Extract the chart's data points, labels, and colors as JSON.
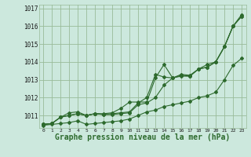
{
  "bg_color": "#cce8dd",
  "grid_color": "#99bb99",
  "line_color": "#2d6a2d",
  "xlabel": "Graphe pression niveau de la mer (hPa)",
  "xlabel_fontsize": 7.0,
  "xlim": [
    -0.5,
    23.5
  ],
  "ylim": [
    1010.3,
    1017.2
  ],
  "yticks": [
    1011,
    1012,
    1013,
    1014,
    1015,
    1016,
    1017
  ],
  "xticks": [
    0,
    1,
    2,
    3,
    4,
    5,
    6,
    7,
    8,
    9,
    10,
    11,
    12,
    13,
    14,
    15,
    16,
    17,
    18,
    19,
    20,
    21,
    22,
    23
  ],
  "series": [
    [
      1010.5,
      1010.55,
      1010.9,
      1011.0,
      1011.1,
      1011.0,
      1011.1,
      1011.05,
      1011.1,
      1011.15,
      1011.2,
      1011.7,
      1012.0,
      1013.3,
      1013.15,
      1013.1,
      1013.3,
      1013.25,
      1013.6,
      1013.7,
      1014.0,
      1014.85,
      1016.0,
      1016.55
    ],
    [
      1010.5,
      1010.55,
      1010.9,
      1011.0,
      1011.1,
      1011.0,
      1011.1,
      1011.05,
      1011.05,
      1011.1,
      1011.15,
      1011.6,
      1011.7,
      1012.0,
      1012.7,
      1013.1,
      1013.2,
      1013.2,
      1013.6,
      1013.7,
      1014.0,
      1014.85,
      1016.0,
      1016.55
    ],
    [
      1010.5,
      1010.55,
      1010.9,
      1011.15,
      1011.2,
      1011.0,
      1011.1,
      1011.1,
      1011.15,
      1011.4,
      1011.75,
      1011.75,
      1011.75,
      1013.1,
      1013.85,
      1013.1,
      1013.25,
      1013.2,
      1013.6,
      1013.85,
      1014.0,
      1014.85,
      1016.0,
      1016.65
    ],
    [
      1010.45,
      1010.5,
      1010.55,
      1010.6,
      1010.7,
      1010.5,
      1010.55,
      1010.6,
      1010.65,
      1010.7,
      1010.8,
      1011.0,
      1011.2,
      1011.3,
      1011.5,
      1011.6,
      1011.7,
      1011.8,
      1012.0,
      1012.1,
      1012.3,
      1013.0,
      1013.8,
      1014.2
    ]
  ],
  "marker": "D",
  "marker_size": 2.0,
  "linewidth": 0.8
}
